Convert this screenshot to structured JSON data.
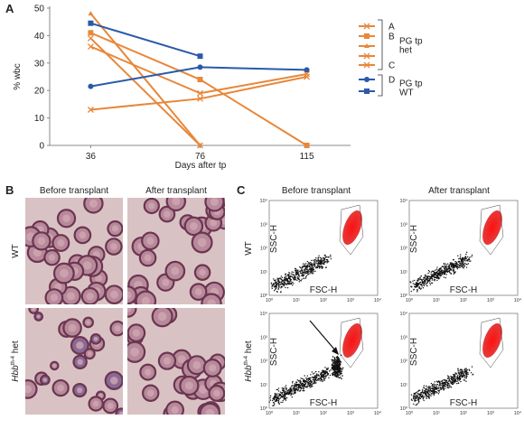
{
  "chart_data": {
    "type": "line",
    "panel_label": "A",
    "x_label": "Days after tp",
    "y_label": "% wbc",
    "x": [
      36,
      76,
      115
    ],
    "xlim": [
      21,
      131
    ],
    "xticks": [
      36,
      76,
      115
    ],
    "ylim": [
      0,
      50
    ],
    "yticks": [
      0,
      10,
      20,
      30,
      40,
      50
    ],
    "series": [
      {
        "name": "A",
        "color": "#e8873a",
        "marker": "x",
        "values": [
          13,
          17,
          25
        ]
      },
      {
        "name": "B",
        "color": "#e8873a",
        "marker": "square",
        "values": [
          41,
          24,
          0
        ]
      },
      {
        "name": null,
        "color": "#e8873a",
        "marker": "triangle",
        "values": [
          48,
          0,
          null
        ]
      },
      {
        "name": null,
        "color": "#e8873a",
        "marker": "x",
        "values": [
          39,
          0,
          null
        ]
      },
      {
        "name": "C",
        "color": "#e8873a",
        "marker": "x",
        "values": [
          36,
          19,
          26
        ]
      },
      {
        "name": "D",
        "color": "#2a5aa8",
        "marker": "circle",
        "values": [
          21.5,
          28.5,
          27.5
        ]
      },
      {
        "name": null,
        "color": "#2a5aa8",
        "marker": "square",
        "values": [
          44.5,
          32.5,
          null
        ]
      }
    ],
    "legend_groups": [
      {
        "lines": [
          "PG tp",
          "het"
        ]
      },
      {
        "lines": [
          "PG tp",
          "WT"
        ]
      }
    ]
  },
  "panel_b": {
    "label": "B",
    "columns": [
      "Before transplant",
      "After transplant"
    ],
    "rows": [
      "WT",
      "het"
    ],
    "gene": "Hbb",
    "allele": "th-4"
  },
  "panel_c": {
    "label": "C",
    "columns": [
      "Before transplant",
      "After transplant"
    ],
    "rows": [
      "WT",
      "het"
    ],
    "gene": "Hbb",
    "allele": "th-4",
    "x_axis": "FSC-H",
    "y_axis": "SSC-H",
    "ticks": [
      "10⁰",
      "10¹",
      "10²",
      "10³",
      "10⁴"
    ]
  }
}
